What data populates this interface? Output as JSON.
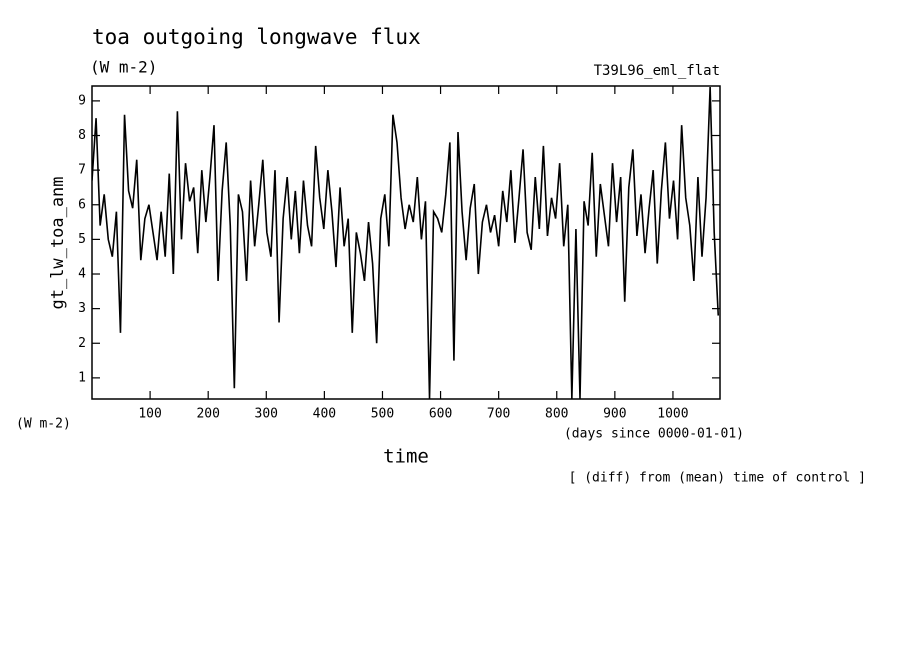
{
  "chart_data": {
    "type": "line",
    "title": "toa outgoing longwave flux",
    "units_top": "(W m-2)",
    "run_label": "T39L96_eml_flat",
    "y_label": "gt_lw_toa_anm",
    "units_left": "(W m-2)",
    "x_units": "(days since 0000-01-01)",
    "x_label": "time",
    "note": "[ (diff) from (mean) time of control ]",
    "xlim": [
      0,
      1081
    ],
    "ylim": [
      0.39,
      9.43
    ],
    "xticks": [
      100,
      200,
      300,
      400,
      500,
      600,
      700,
      800,
      900,
      1000
    ],
    "yticks": [
      1,
      2,
      3,
      4,
      5,
      6,
      7,
      8,
      9
    ],
    "x": [
      0,
      7,
      14,
      21,
      28,
      35,
      42,
      49,
      56,
      63,
      70,
      77,
      84,
      91,
      98,
      105,
      112,
      119,
      126,
      133,
      140,
      147,
      154,
      161,
      168,
      175,
      182,
      189,
      196,
      203,
      210,
      217,
      224,
      231,
      238,
      245,
      252,
      259,
      266,
      273,
      280,
      287,
      294,
      301,
      308,
      315,
      322,
      329,
      336,
      343,
      350,
      357,
      364,
      371,
      378,
      385,
      392,
      399,
      406,
      413,
      420,
      427,
      434,
      441,
      448,
      455,
      462,
      469,
      476,
      483,
      490,
      497,
      504,
      511,
      518,
      525,
      532,
      539,
      546,
      553,
      560,
      567,
      574,
      581,
      588,
      595,
      602,
      609,
      616,
      623,
      630,
      637,
      644,
      651,
      658,
      665,
      672,
      679,
      686,
      693,
      700,
      707,
      714,
      721,
      728,
      735,
      742,
      749,
      756,
      763,
      770,
      777,
      784,
      791,
      798,
      805,
      812,
      819,
      826,
      833,
      840,
      847,
      854,
      861,
      868,
      875,
      882,
      889,
      896,
      903,
      910,
      917,
      924,
      931,
      938,
      945,
      952,
      959,
      966,
      973,
      980,
      987,
      994,
      1001,
      1008,
      1015,
      1022,
      1029,
      1036,
      1043,
      1050,
      1057,
      1064,
      1071,
      1078
    ],
    "series": [
      {
        "name": "gt_lw_toa_anm",
        "color": "#000000",
        "values": [
          6.7,
          8.5,
          5.4,
          6.3,
          5.0,
          4.5,
          5.8,
          2.3,
          8.6,
          6.4,
          5.9,
          7.3,
          4.4,
          5.6,
          6.0,
          5.2,
          4.4,
          5.8,
          4.5,
          6.9,
          4.0,
          8.7,
          5.0,
          7.2,
          6.1,
          6.5,
          4.6,
          7.0,
          5.5,
          6.8,
          8.3,
          3.8,
          6.4,
          7.8,
          5.4,
          0.7,
          6.3,
          5.8,
          3.8,
          6.7,
          4.8,
          6.0,
          7.3,
          5.2,
          4.5,
          7.0,
          2.6,
          5.6,
          6.8,
          5.0,
          6.4,
          4.6,
          6.7,
          5.4,
          4.8,
          7.7,
          6.2,
          5.3,
          7.0,
          5.8,
          4.2,
          6.5,
          4.8,
          5.6,
          2.3,
          5.2,
          4.6,
          3.8,
          5.5,
          4.3,
          2.0,
          5.6,
          6.3,
          4.8,
          8.6,
          7.8,
          6.2,
          5.3,
          6.0,
          5.5,
          6.8,
          5.0,
          6.1,
          0.4,
          5.8,
          5.6,
          5.2,
          6.3,
          7.8,
          1.5,
          8.1,
          5.8,
          4.4,
          5.9,
          6.6,
          4.0,
          5.5,
          6.0,
          5.2,
          5.7,
          4.8,
          6.4,
          5.5,
          7.0,
          4.9,
          6.2,
          7.6,
          5.2,
          4.7,
          6.8,
          5.3,
          7.7,
          5.1,
          6.2,
          5.6,
          7.2,
          4.8,
          6.0,
          0.4,
          5.3,
          0.4,
          6.1,
          5.4,
          7.5,
          4.5,
          6.6,
          5.7,
          4.8,
          7.2,
          5.5,
          6.8,
          3.2,
          6.5,
          7.6,
          5.1,
          6.3,
          4.6,
          5.9,
          7.0,
          4.3,
          6.4,
          7.8,
          5.6,
          6.7,
          5.0,
          8.3,
          6.2,
          5.4,
          3.8,
          6.8,
          4.5,
          6.2,
          9.4,
          5.2,
          2.8
        ]
      }
    ]
  }
}
